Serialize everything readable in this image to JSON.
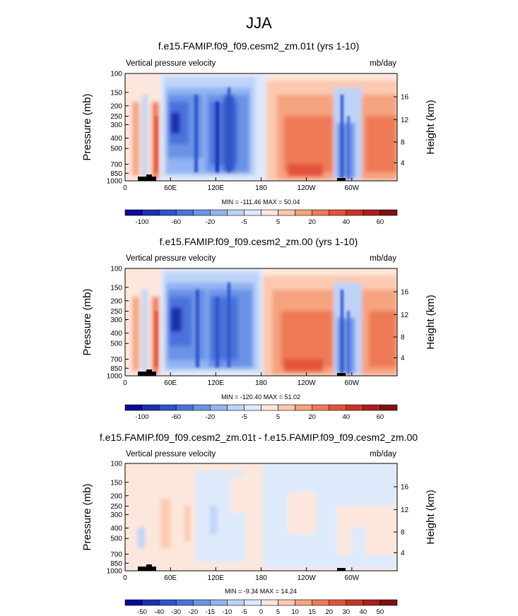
{
  "page_title": "JJA",
  "colors": {
    "ref": [
      "#08089c",
      "#1c2fb4",
      "#2f54c8",
      "#4a73da",
      "#6b93e8",
      "#93b4f2",
      "#bed3f8",
      "#ddeafb",
      "#fde7dc",
      "#fbc9b0",
      "#f6a380",
      "#ee7a55",
      "#e3533a",
      "#c83525",
      "#a8201c",
      "#7d1212"
    ],
    "diff": [
      "#08089c",
      "#1c2fb4",
      "#2f54c8",
      "#4a73da",
      "#6b93e8",
      "#93b4f2",
      "#bed3f8",
      "#ddeafb",
      "#fde7dc",
      "#fbc9b0",
      "#f6a380",
      "#ee7a55",
      "#e3533a",
      "#c83525",
      "#a8201c",
      "#7d1212"
    ]
  },
  "chart_data": [
    {
      "type": "heatmap",
      "title": "f.e15.FAMIP.f09_f09.cesm2_zm.01t (yrs 1-10)",
      "left_label": "Vertical pressure velocity",
      "right_label": "mb/day",
      "ylabel": "Pressure (mb)",
      "y2label": "Height (km)",
      "stats": "MIN = -111.46  MAX =  50.04",
      "xlim": [
        0,
        360
      ],
      "ylim": [
        1000,
        100
      ],
      "x_ticks": [
        {
          "v": 0,
          "t": "0"
        },
        {
          "v": 60,
          "t": "60E"
        },
        {
          "v": 120,
          "t": "120E"
        },
        {
          "v": 180,
          "t": "180"
        },
        {
          "v": 240,
          "t": "120W"
        },
        {
          "v": 300,
          "t": "60W"
        }
      ],
      "y_ticks": [
        {
          "v": 100,
          "t": "100"
        },
        {
          "v": 150,
          "t": "150"
        },
        {
          "v": 200,
          "t": "200"
        },
        {
          "v": 250,
          "t": "250"
        },
        {
          "v": 300,
          "t": "300"
        },
        {
          "v": 400,
          "t": "400"
        },
        {
          "v": 500,
          "t": "500"
        },
        {
          "v": 700,
          "t": "700"
        },
        {
          "v": 850,
          "t": "850"
        },
        {
          "v": 1000,
          "t": "1000"
        }
      ],
      "y2_ticks": [
        {
          "v": 165,
          "t": "16"
        },
        {
          "v": 269,
          "t": "12"
        },
        {
          "v": 435,
          "t": "8"
        },
        {
          "v": 680,
          "t": "4"
        }
      ],
      "colorbar_labels": [
        {
          "i": 1,
          "t": "-100"
        },
        {
          "i": 3,
          "t": "-60"
        },
        {
          "i": 5,
          "t": "-20"
        },
        {
          "i": 7,
          "t": "-5"
        },
        {
          "i": 9,
          "t": "5"
        },
        {
          "i": 11,
          "t": "20"
        },
        {
          "i": 13,
          "t": "40"
        },
        {
          "i": 15,
          "t": "60"
        }
      ],
      "colorbar_levels": [
        -100,
        -80,
        -60,
        -40,
        -20,
        -10,
        -5,
        0,
        5,
        10,
        20,
        30,
        40,
        50,
        60
      ]
    },
    {
      "type": "heatmap",
      "title": "f.e15.FAMIP.f09_f09.cesm2_zm.00 (yrs 1-10)",
      "left_label": "Vertical pressure velocity",
      "right_label": "mb/day",
      "ylabel": "Pressure (mb)",
      "y2label": "Height (km)",
      "stats": "MIN = -120.40  MAX =  51.02",
      "xlim": [
        0,
        360
      ],
      "ylim": [
        1000,
        100
      ],
      "x_ticks": [
        {
          "v": 0,
          "t": "0"
        },
        {
          "v": 60,
          "t": "60E"
        },
        {
          "v": 120,
          "t": "120E"
        },
        {
          "v": 180,
          "t": "180"
        },
        {
          "v": 240,
          "t": "120W"
        },
        {
          "v": 300,
          "t": "60W"
        }
      ],
      "y_ticks": [
        {
          "v": 100,
          "t": "100"
        },
        {
          "v": 150,
          "t": "150"
        },
        {
          "v": 200,
          "t": "200"
        },
        {
          "v": 250,
          "t": "250"
        },
        {
          "v": 300,
          "t": "300"
        },
        {
          "v": 400,
          "t": "400"
        },
        {
          "v": 500,
          "t": "500"
        },
        {
          "v": 700,
          "t": "700"
        },
        {
          "v": 850,
          "t": "850"
        },
        {
          "v": 1000,
          "t": "1000"
        }
      ],
      "y2_ticks": [
        {
          "v": 165,
          "t": "16"
        },
        {
          "v": 269,
          "t": "12"
        },
        {
          "v": 435,
          "t": "8"
        },
        {
          "v": 680,
          "t": "4"
        }
      ],
      "colorbar_labels": [
        {
          "i": 1,
          "t": "-100"
        },
        {
          "i": 3,
          "t": "-60"
        },
        {
          "i": 5,
          "t": "-20"
        },
        {
          "i": 7,
          "t": "-5"
        },
        {
          "i": 9,
          "t": "5"
        },
        {
          "i": 11,
          "t": "20"
        },
        {
          "i": 13,
          "t": "40"
        },
        {
          "i": 15,
          "t": "60"
        }
      ],
      "colorbar_levels": [
        -100,
        -80,
        -60,
        -40,
        -20,
        -10,
        -5,
        0,
        5,
        10,
        20,
        30,
        40,
        50,
        60
      ]
    },
    {
      "type": "heatmap",
      "title": "f.e15.FAMIP.f09_f09.cesm2_zm.01t - f.e15.FAMIP.f09_f09.cesm2_zm.00",
      "left_label": "Vertical pressure velocity",
      "right_label": "mb/day",
      "ylabel": "Pressure (mb)",
      "y2label": "Height (km)",
      "stats": "MIN =  -9.34  MAX =  14.24",
      "xlim": [
        0,
        360
      ],
      "ylim": [
        1000,
        100
      ],
      "x_ticks": [
        {
          "v": 0,
          "t": "0"
        },
        {
          "v": 60,
          "t": "60E"
        },
        {
          "v": 120,
          "t": "120E"
        },
        {
          "v": 180,
          "t": "180"
        },
        {
          "v": 240,
          "t": "120W"
        },
        {
          "v": 300,
          "t": "60W"
        }
      ],
      "y_ticks": [
        {
          "v": 100,
          "t": "100"
        },
        {
          "v": 150,
          "t": "150"
        },
        {
          "v": 200,
          "t": "200"
        },
        {
          "v": 250,
          "t": "250"
        },
        {
          "v": 300,
          "t": "300"
        },
        {
          "v": 400,
          "t": "400"
        },
        {
          "v": 500,
          "t": "500"
        },
        {
          "v": 700,
          "t": "700"
        },
        {
          "v": 850,
          "t": "850"
        },
        {
          "v": 1000,
          "t": "1000"
        }
      ],
      "y2_ticks": [
        {
          "v": 165,
          "t": "16"
        },
        {
          "v": 269,
          "t": "12"
        },
        {
          "v": 435,
          "t": "8"
        },
        {
          "v": 680,
          "t": "4"
        }
      ],
      "colorbar_labels": [
        {
          "i": 1,
          "t": "-50"
        },
        {
          "i": 2,
          "t": "-40"
        },
        {
          "i": 3,
          "t": "-30"
        },
        {
          "i": 4,
          "t": "-20"
        },
        {
          "i": 5,
          "t": "-15"
        },
        {
          "i": 6,
          "t": "-10"
        },
        {
          "i": 7,
          "t": "-5"
        },
        {
          "i": 8,
          "t": "0"
        },
        {
          "i": 9,
          "t": "5"
        },
        {
          "i": 10,
          "t": "10"
        },
        {
          "i": 11,
          "t": "15"
        },
        {
          "i": 12,
          "t": "20"
        },
        {
          "i": 13,
          "t": "30"
        },
        {
          "i": 14,
          "t": "40"
        },
        {
          "i": 15,
          "t": "50"
        }
      ],
      "colorbar_levels": [
        -50,
        -40,
        -30,
        -20,
        -15,
        -10,
        -5,
        0,
        5,
        10,
        15,
        20,
        30,
        40,
        50
      ]
    }
  ]
}
